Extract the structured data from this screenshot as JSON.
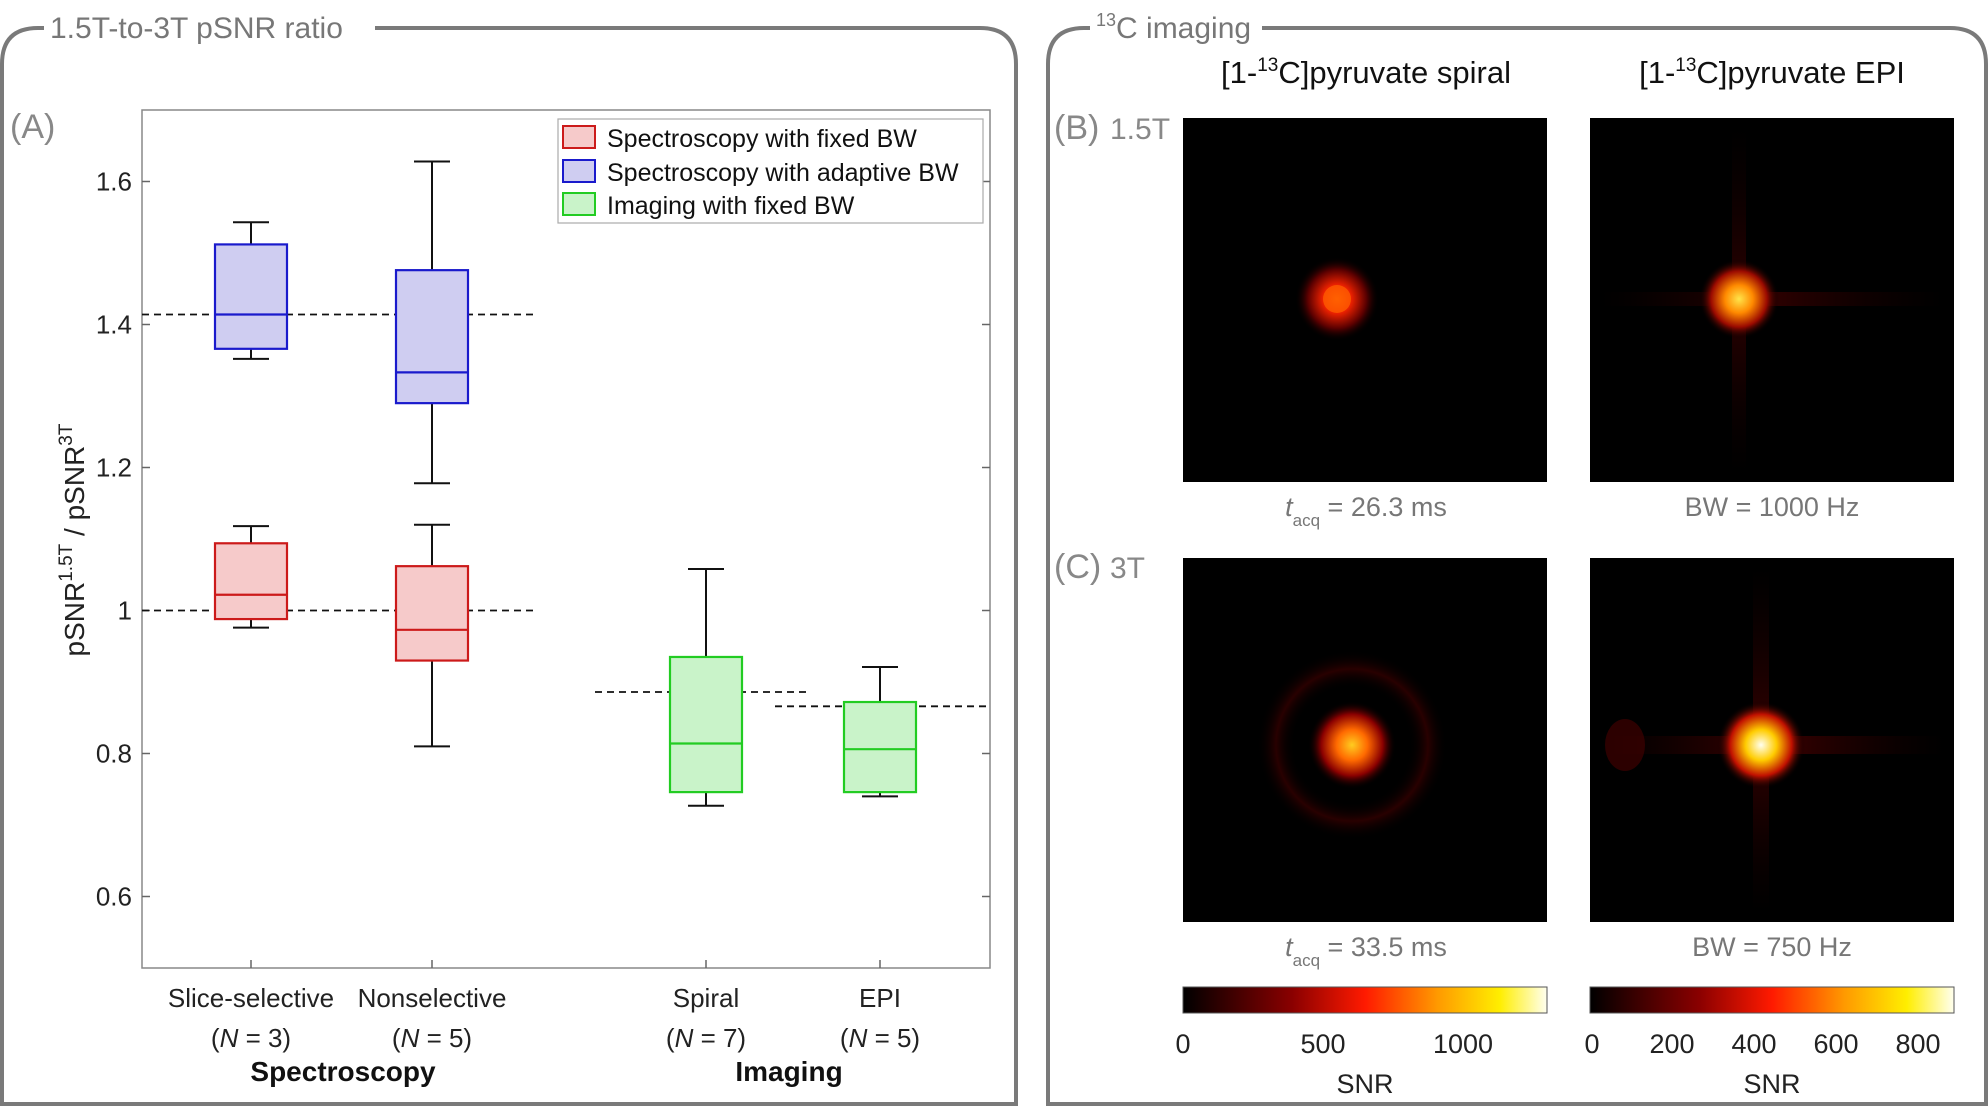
{
  "panel_left": {
    "title": "1.5T-to-3T pSNR ratio",
    "tag": "(A)"
  },
  "panel_right": {
    "title": "13C imaging",
    "title_sup": "13",
    "title_rest": "C imaging",
    "tag_b": "(B)",
    "field_b": "1.5T",
    "tag_c": "(C)",
    "field_c": "3T",
    "col1_title": "[1-13C]pyruvate spiral",
    "col2_title": "[1-13C]pyruvate EPI",
    "caption_b1": "tacq = 26.3 ms",
    "caption_b2": "BW = 1000 Hz",
    "caption_c1": "tacq = 33.5 ms",
    "caption_c2": "BW = 750 Hz",
    "cbar1_label": "SNR",
    "cbar2_label": "SNR",
    "cbar1_ticks": [
      "0",
      "500",
      "1000"
    ],
    "cbar2_ticks": [
      "0",
      "200",
      "400",
      "600",
      "800"
    ]
  },
  "colors": {
    "fixed_bw": "#cc1a1a",
    "adaptive_bw": "#1a1acc",
    "imaging": "#22cc22"
  },
  "chart_data": {
    "type": "box",
    "ylabel": "pSNR1.5T / pSNR3T",
    "ylim": [
      0.5,
      1.7
    ],
    "yticks": [
      0.6,
      0.8,
      1,
      1.2,
      1.4,
      1.6
    ],
    "ytick_labels": [
      "0.6",
      "0.8",
      "1",
      "1.2",
      "1.4",
      "1.6"
    ],
    "categories": [
      {
        "name": "Slice-selective",
        "n_label": "(N = 3)",
        "group": "Spectroscopy"
      },
      {
        "name": "Nonselective",
        "n_label": "(N = 5)",
        "group": "Spectroscopy"
      },
      {
        "name": "Spiral",
        "n_label": "(N = 7)",
        "group": "Imaging"
      },
      {
        "name": "EPI",
        "n_label": "(N = 5)",
        "group": "Imaging"
      }
    ],
    "groups": [
      "Spectroscopy",
      "Imaging"
    ],
    "legend": [
      {
        "label": "Spectroscopy with fixed BW",
        "color": "#cc1a1a"
      },
      {
        "label": "Spectroscopy with adaptive BW",
        "color": "#1a1acc"
      },
      {
        "label": "Imaging with fixed BW",
        "color": "#22cc22"
      }
    ],
    "legend_location": "top-right",
    "series": [
      {
        "name": "Spectroscopy with fixed BW",
        "boxes": [
          {
            "category": "Slice-selective",
            "min": 0.976,
            "q1": 0.988,
            "median": 1.022,
            "q3": 1.094,
            "max": 1.118
          },
          {
            "category": "Nonselective",
            "min": 0.81,
            "q1": 0.93,
            "median": 0.973,
            "q3": 1.062,
            "max": 1.12
          }
        ]
      },
      {
        "name": "Spectroscopy with adaptive BW",
        "boxes": [
          {
            "category": "Slice-selective",
            "min": 1.352,
            "q1": 1.366,
            "median": 1.414,
            "q3": 1.512,
            "max": 1.543
          },
          {
            "category": "Nonselective",
            "min": 1.178,
            "q1": 1.29,
            "median": 1.333,
            "q3": 1.476,
            "max": 1.628
          }
        ]
      },
      {
        "name": "Imaging with fixed BW",
        "boxes": [
          {
            "category": "Spiral",
            "min": 0.727,
            "q1": 0.746,
            "median": 0.814,
            "q3": 0.935,
            "max": 1.058
          },
          {
            "category": "EPI",
            "min": 0.74,
            "q1": 0.746,
            "median": 0.806,
            "q3": 0.872,
            "max": 0.921
          }
        ]
      }
    ],
    "reference_lines": [
      {
        "y": 1.414,
        "span": "spectroscopy"
      },
      {
        "y": 1.0,
        "span": "spectroscopy"
      },
      {
        "y": 0.886,
        "span": "spiral"
      },
      {
        "y": 0.866,
        "span": "epi"
      }
    ]
  },
  "images": {
    "b_spiral_blob": {
      "intensity": 0.62
    },
    "b_epi_blob": {
      "intensity": 0.8
    },
    "c_spiral_blob": {
      "intensity": 0.82
    },
    "c_epi_blob": {
      "intensity": 0.97
    }
  }
}
